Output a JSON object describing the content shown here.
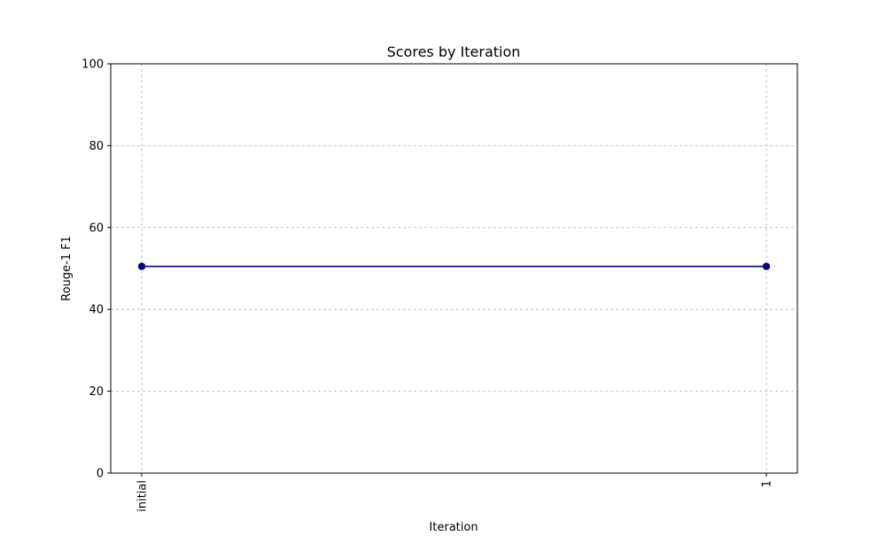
{
  "chart_data": {
    "type": "line",
    "title": "Scores by Iteration",
    "xlabel": "Iteration",
    "ylabel": "Rouge-1 F1",
    "categories": [
      "initial",
      "1"
    ],
    "series": [
      {
        "values": [
          50.5,
          50.5
        ],
        "color": "#00008b"
      }
    ],
    "ylim": [
      0,
      100
    ],
    "yticks": [
      0,
      20,
      40,
      60,
      80,
      100
    ],
    "grid": true,
    "marker": "circle"
  }
}
